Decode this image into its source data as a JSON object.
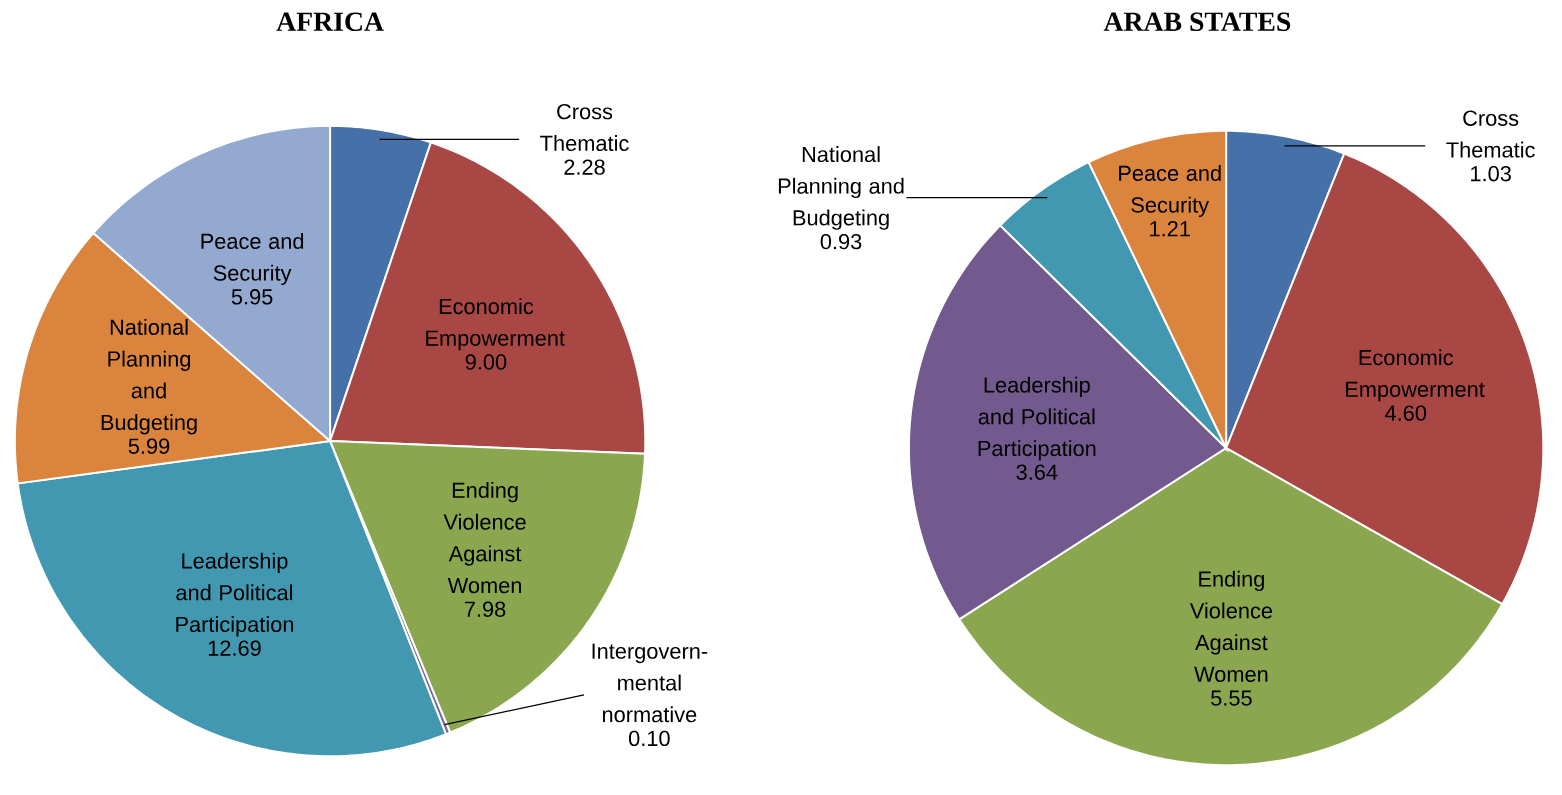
{
  "chart_data": [
    {
      "type": "pie",
      "title": "AFRICA",
      "categories": [
        "Cross Thematic",
        "Economic Empowerment",
        "Ending Violence Against Women",
        "Intergovern-mental normative",
        "Leadership and Political Participation",
        "National Planning and Budgeting",
        "Peace and Security"
      ],
      "values": [
        2.28,
        9.0,
        7.98,
        0.1,
        12.69,
        5.99,
        5.95
      ],
      "value_labels": [
        "2.28",
        "9.00",
        "7.98",
        "0.10",
        "12.69",
        "5.99",
        "5.95"
      ],
      "colors": [
        "#4571a8",
        "#a94744",
        "#8aa64f",
        "#7c65a0",
        "#4198b0",
        "#db843d",
        "#94a9d0"
      ]
    },
    {
      "type": "pie",
      "title": "ARAB STATES",
      "categories": [
        "Cross Thematic",
        "Economic Empowerment",
        "Ending Violence Against Women",
        "Leadership and Political Participation",
        "National Planning and Budgeting",
        "Peace and Security"
      ],
      "values": [
        1.03,
        4.6,
        5.55,
        3.64,
        0.93,
        1.21
      ],
      "value_labels": [
        "1.03",
        "4.60",
        "5.55",
        "3.64",
        "0.93",
        "1.21"
      ],
      "colors": [
        "#4571a8",
        "#a94744",
        "#8aa64f",
        "#735a8e",
        "#4198b0",
        "#db843d"
      ]
    }
  ]
}
